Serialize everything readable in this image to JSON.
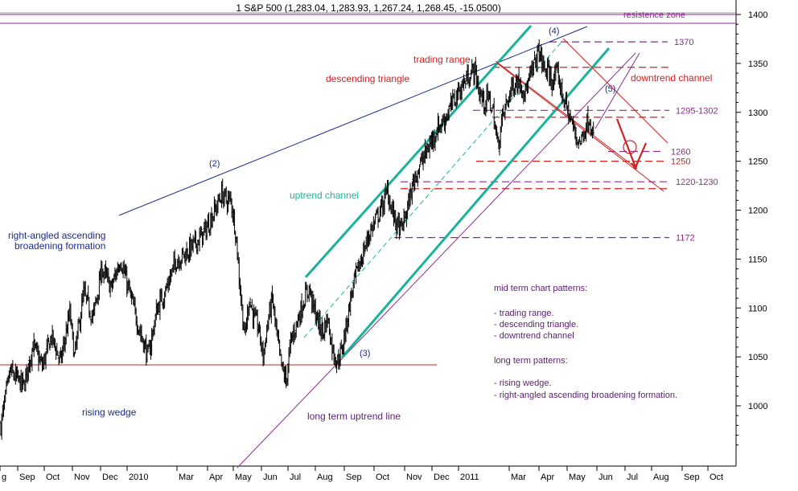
{
  "chart_data": {
    "type": "ohlc",
    "title": "1 S&P 500 (1,283.04, 1,283.93, 1,267.24, 1,268.45, -15.0500)",
    "ylim": [
      940,
      1410
    ],
    "y_ticks": [
      1000,
      1050,
      1100,
      1150,
      1200,
      1250,
      1300,
      1350,
      1400
    ],
    "x_ticks": [
      "g",
      "Sep",
      "Oct",
      "Nov",
      "Dec",
      "2010",
      "Mar",
      "Apr",
      "May",
      "Jun",
      "Jul",
      "Aug",
      "Sep",
      "Oct",
      "Nov",
      "Dec",
      "2011",
      "Mar",
      "Apr",
      "May",
      "Jun",
      "Jul",
      "Aug",
      "Sep",
      "Oct"
    ],
    "price_path": [
      [
        0,
        980
      ],
      [
        2,
        1035
      ],
      [
        5,
        1020
      ],
      [
        7,
        1062
      ],
      [
        9,
        1040
      ],
      [
        11,
        1071
      ],
      [
        13,
        1045
      ],
      [
        15,
        1095
      ],
      [
        16,
        1050
      ],
      [
        18,
        1115
      ],
      [
        20,
        1090
      ],
      [
        22,
        1140
      ],
      [
        24,
        1120
      ],
      [
        26,
        1150
      ],
      [
        28,
        1115
      ],
      [
        30,
        1080
      ],
      [
        32,
        1050
      ],
      [
        34,
        1100
      ],
      [
        36,
        1120
      ],
      [
        38,
        1148
      ],
      [
        40,
        1155
      ],
      [
        42,
        1165
      ],
      [
        44,
        1175
      ],
      [
        46,
        1195
      ],
      [
        47,
        1205
      ],
      [
        48,
        1217
      ],
      [
        49,
        1210
      ],
      [
        50,
        1210
      ],
      [
        51,
        1180
      ],
      [
        52,
        1120
      ],
      [
        53,
        1070
      ],
      [
        54,
        1110
      ],
      [
        55,
        1090
      ],
      [
        56,
        1080
      ],
      [
        57,
        1050
      ],
      [
        58,
        1085
      ],
      [
        59,
        1110
      ],
      [
        60,
        1070
      ],
      [
        61,
        1040
      ],
      [
        62,
        1025
      ],
      [
        63,
        1065
      ],
      [
        64,
        1080
      ],
      [
        65,
        1095
      ],
      [
        66,
        1110
      ],
      [
        67,
        1120
      ],
      [
        68,
        1100
      ],
      [
        69,
        1085
      ],
      [
        70,
        1075
      ],
      [
        71,
        1090
      ],
      [
        72,
        1060
      ],
      [
        73,
        1045
      ],
      [
        74,
        1055
      ],
      [
        75,
        1080
      ],
      [
        76,
        1110
      ],
      [
        77,
        1130
      ],
      [
        78,
        1145
      ],
      [
        79,
        1160
      ],
      [
        80,
        1175
      ],
      [
        81,
        1185
      ],
      [
        82,
        1195
      ],
      [
        83,
        1205
      ],
      [
        84,
        1220
      ],
      [
        85,
        1200
      ],
      [
        86,
        1185
      ],
      [
        87,
        1180
      ],
      [
        88,
        1195
      ],
      [
        89,
        1215
      ],
      [
        90,
        1235
      ],
      [
        91,
        1245
      ],
      [
        92,
        1255
      ],
      [
        93,
        1265
      ],
      [
        94,
        1275
      ],
      [
        95,
        1285
      ],
      [
        96,
        1290
      ],
      [
        97,
        1298
      ],
      [
        98,
        1308
      ],
      [
        99,
        1318
      ],
      [
        100,
        1325
      ],
      [
        101,
        1333
      ],
      [
        102,
        1340
      ],
      [
        103,
        1343
      ],
      [
        104,
        1320
      ],
      [
        105,
        1310
      ],
      [
        106,
        1315
      ],
      [
        107,
        1300
      ],
      [
        108,
        1265
      ],
      [
        109,
        1295
      ],
      [
        110,
        1310
      ],
      [
        111,
        1325
      ],
      [
        112,
        1332
      ],
      [
        113,
        1330
      ],
      [
        114,
        1320
      ],
      [
        115,
        1335
      ],
      [
        116,
        1350
      ],
      [
        117,
        1363
      ],
      [
        118,
        1345
      ],
      [
        119,
        1340
      ],
      [
        120,
        1330
      ],
      [
        121,
        1340
      ],
      [
        122,
        1318
      ],
      [
        123,
        1305
      ],
      [
        124,
        1290
      ],
      [
        125,
        1275
      ],
      [
        126,
        1270
      ],
      [
        127,
        1285
      ],
      [
        128,
        1295
      ],
      [
        129,
        1268
      ]
    ],
    "horizontal_levels": [
      {
        "label": "1370",
        "y": 1372,
        "color": "#8a2d8e"
      },
      {
        "label": "",
        "y": 1346,
        "color": "#cc2222"
      },
      {
        "label": "1295-1302",
        "y": 1302,
        "color": "#8a2d8e"
      },
      {
        "label": "",
        "y": 1295,
        "color": "#cc2222"
      },
      {
        "label": "1260",
        "y": 1260,
        "color": "#8a2d8e"
      },
      {
        "label": "1250",
        "y": 1250,
        "color": "#cc2222"
      },
      {
        "label": "1220-1230",
        "y": 1229,
        "color": "#8a2d8e"
      },
      {
        "label": "",
        "y": 1222,
        "color": "#cc2222"
      },
      {
        "label": "1172",
        "y": 1172,
        "color": "#8a2d8e"
      }
    ],
    "resistance_zone": {
      "label": "resistence zone",
      "y_top": 1400,
      "y_bottom": 1391
    },
    "pivots": [
      {
        "label": "(2)",
        "x": 48,
        "y": 1217
      },
      {
        "label": "(3)",
        "x": 73,
        "y": 1045
      },
      {
        "label": "(4)",
        "x": 117,
        "y": 1372
      },
      {
        "label": "(5)",
        "x": 127,
        "y": 1298
      }
    ],
    "annotations": [
      {
        "text": "trading range",
        "color": "#cc2222"
      },
      {
        "text": "descending triangle",
        "color": "#cc2222"
      },
      {
        "text": "downtrend channel",
        "color": "#cc2222"
      },
      {
        "text": "uptrend channel",
        "color": "#19b39a"
      },
      {
        "text": "right-angled ascending",
        "color": "#1a2a8a"
      },
      {
        "text": "broadening formation",
        "color": "#1a2a8a"
      },
      {
        "text": "rising wedge",
        "color": "#1a2a8a"
      },
      {
        "text": "long term uptrend line",
        "color": "#5a1f6e"
      }
    ],
    "notes": [
      "mid term chart patterns:",
      "- trading range.",
      "- descending triangle.",
      "- downtrend channel",
      "long term patterns:",
      "- rising wedge.",
      "- right-angled ascending broadening formation."
    ]
  }
}
